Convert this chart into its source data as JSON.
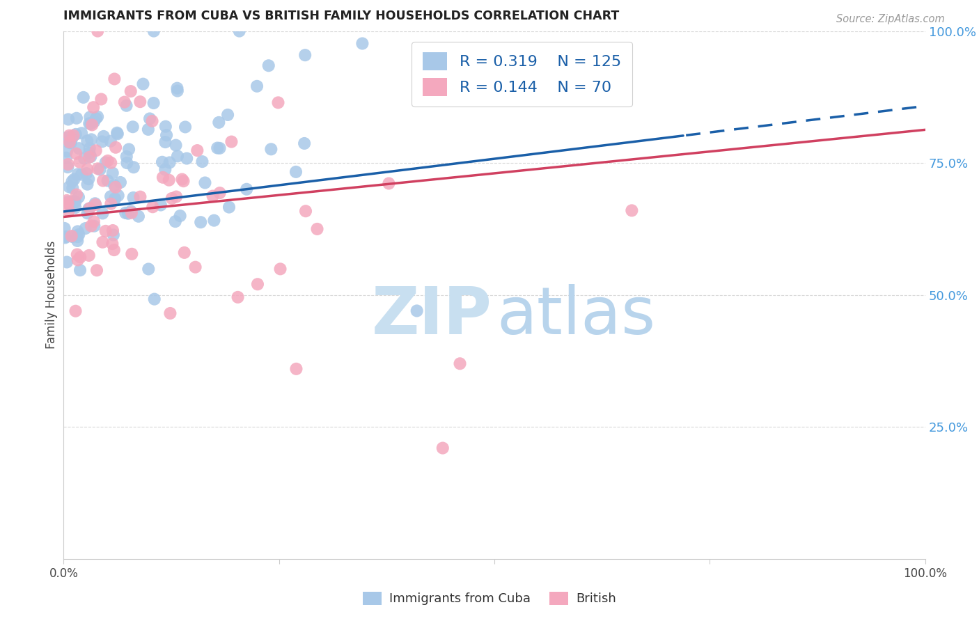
{
  "title": "IMMIGRANTS FROM CUBA VS BRITISH FAMILY HOUSEHOLDS CORRELATION CHART",
  "source": "Source: ZipAtlas.com",
  "ylabel": "Family Households",
  "r_cuba": 0.319,
  "n_cuba": 125,
  "r_british": 0.144,
  "n_british": 70,
  "color_cuba": "#a8c8e8",
  "color_british": "#f4a8be",
  "line_color_cuba": "#1a5fa8",
  "line_color_british": "#d04060",
  "watermark_zip_color": "#c8dff0",
  "watermark_atlas_color": "#b8d4ec",
  "legend_text_color": "#1a5fa8",
  "legend_rn_color": "#1a5fa8",
  "title_color": "#222222",
  "grid_color": "#d8d8d8",
  "axis_color": "#cccccc",
  "right_ytick_color": "#4499dd",
  "background_color": "#ffffff",
  "ytick_labels": [
    "100.0%",
    "75.0%",
    "50.0%",
    "25.0%"
  ],
  "ytick_positions": [
    1.0,
    0.75,
    0.5,
    0.25
  ],
  "legend_label_cuba": "Immigrants from Cuba",
  "legend_label_british": "British"
}
